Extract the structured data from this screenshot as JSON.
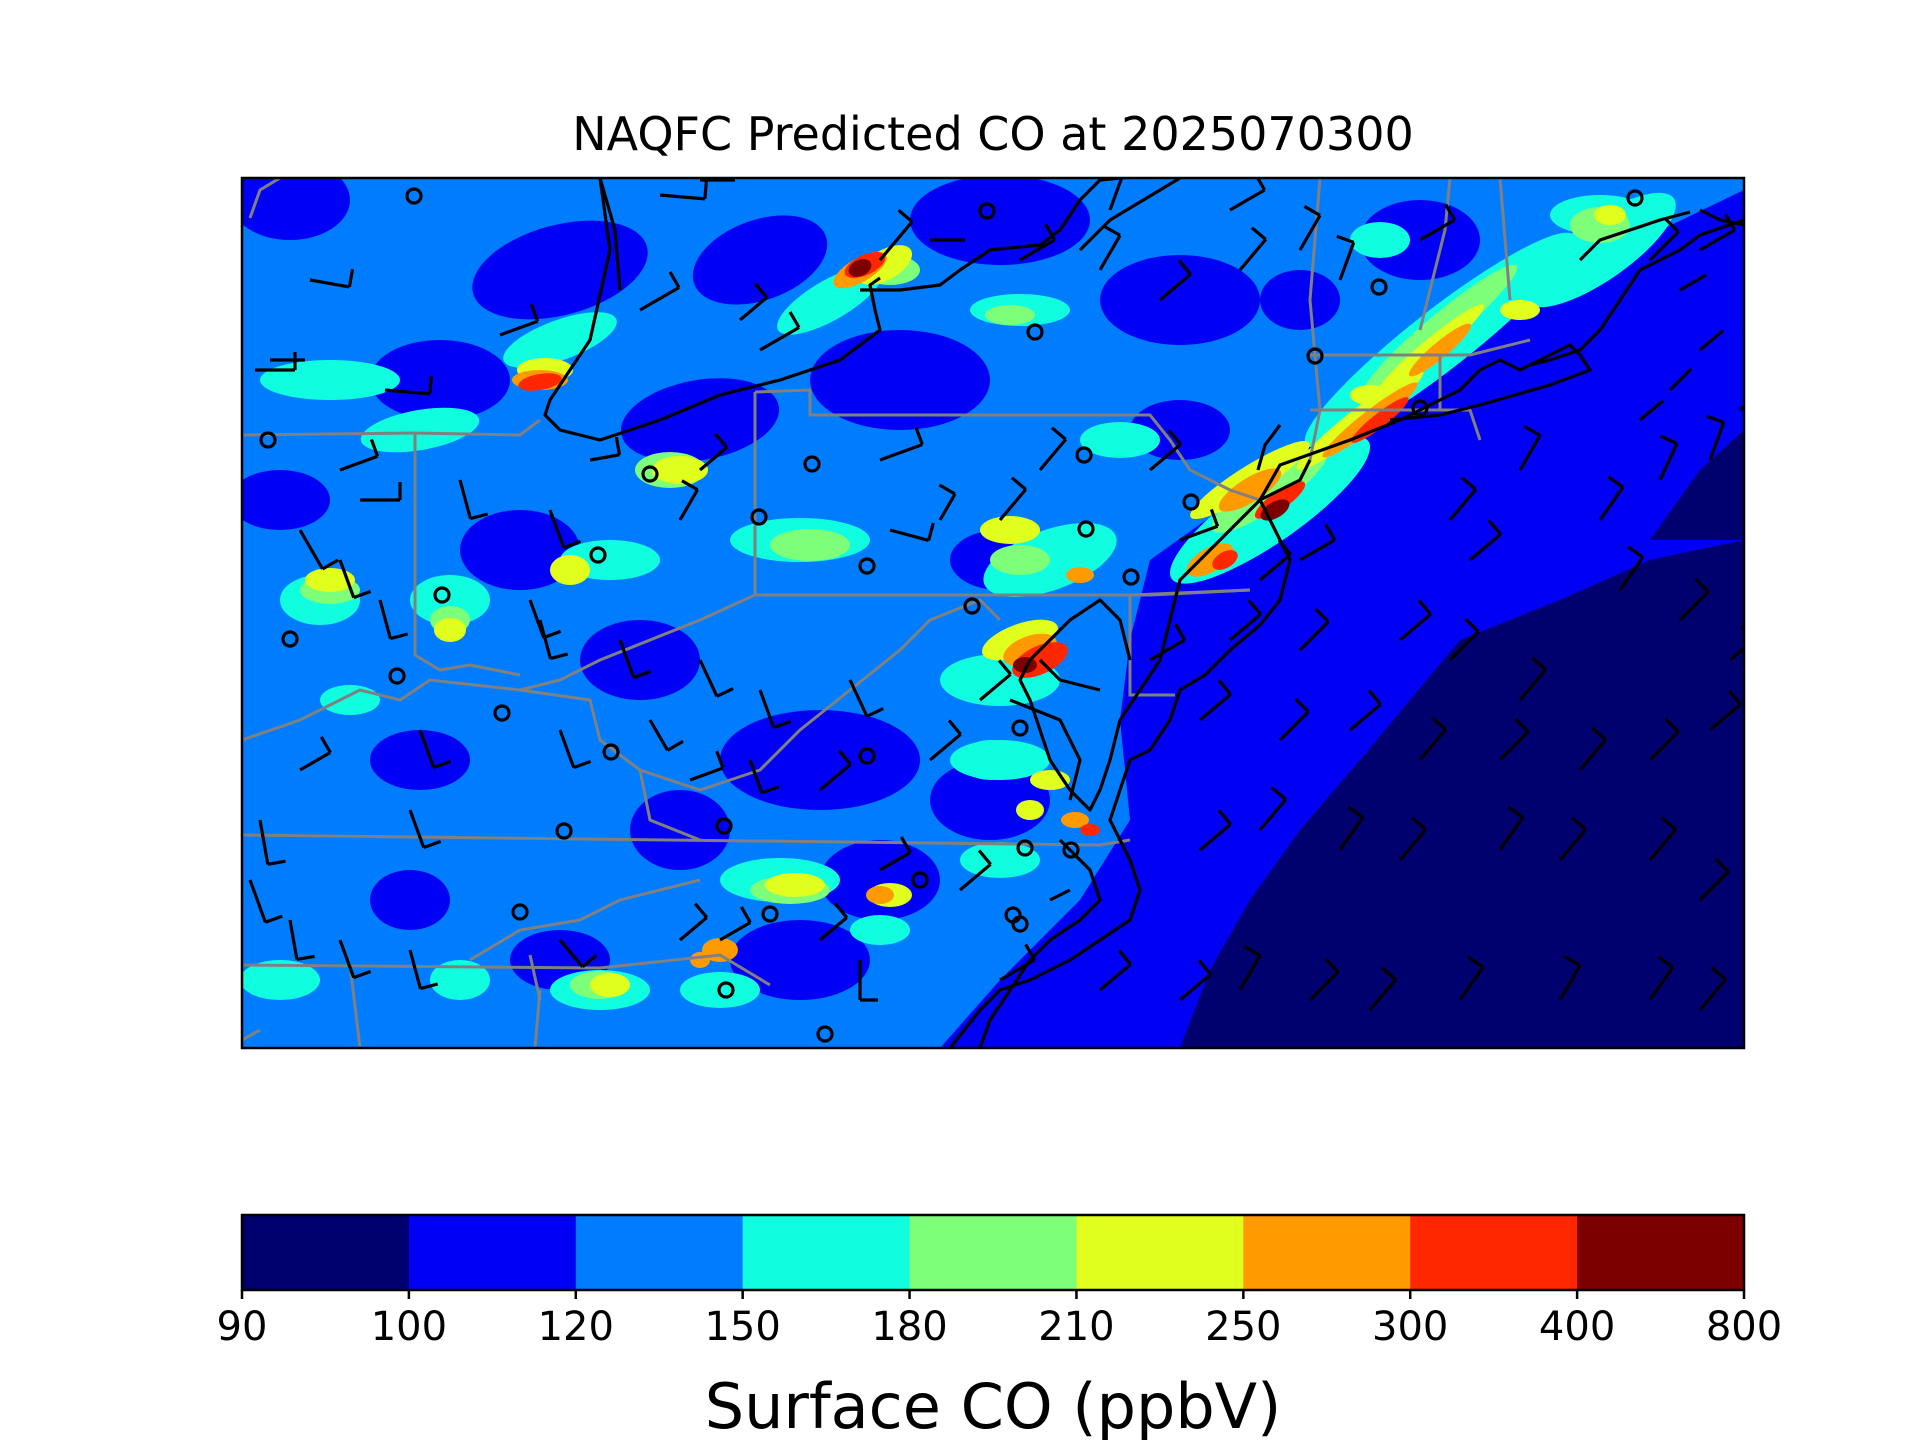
{
  "title": "NAQFC Predicted CO at 2025070300",
  "colorbar": {
    "label": "Surface CO (ppbV)",
    "ticks": [
      "90",
      "100",
      "120",
      "150",
      "180",
      "210",
      "250",
      "300",
      "400",
      "800"
    ],
    "bins": [
      {
        "min": 90,
        "max": 100,
        "color": "#00006f"
      },
      {
        "min": 100,
        "max": 120,
        "color": "#0000f5"
      },
      {
        "min": 120,
        "max": 150,
        "color": "#007dff"
      },
      {
        "min": 150,
        "max": 180,
        "color": "#11fde0"
      },
      {
        "min": 180,
        "max": 210,
        "color": "#7dff7a"
      },
      {
        "min": 210,
        "max": 250,
        "color": "#e1ff1c"
      },
      {
        "min": 250,
        "max": 300,
        "color": "#ff9a00"
      },
      {
        "min": 300,
        "max": 400,
        "color": "#ff2700"
      },
      {
        "min": 400,
        "max": 800,
        "color": "#7d0000"
      }
    ]
  },
  "map": {
    "region": "US Mid-Atlantic / Northeast",
    "background_bin": 120,
    "state_border_color": "#808080",
    "coastline_color": "#000000",
    "overlays": [
      "wind-barbs",
      "station-circles",
      "state-borders",
      "coastline"
    ]
  }
}
